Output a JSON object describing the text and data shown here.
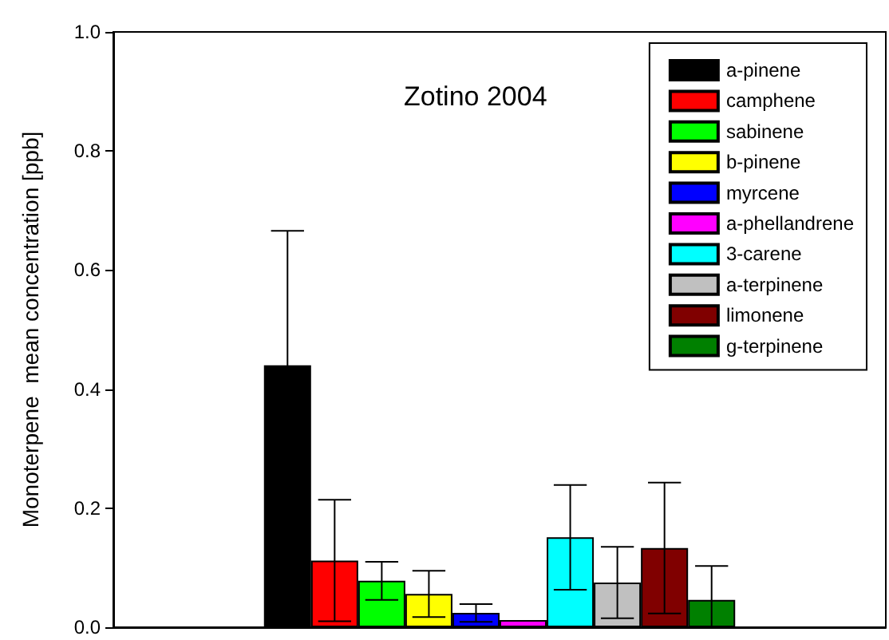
{
  "chart_data": {
    "type": "bar",
    "title": "Zotino 2004",
    "ylabel": "Monoterpene  mean concentration [ppb]",
    "categories": [
      null
    ],
    "series": [
      {
        "name": "a-pinene",
        "color": "#000000",
        "values": [
          0.44
        ],
        "errors": [
          0.226
        ]
      },
      {
        "name": "camphene",
        "color": "#ff0000",
        "values": [
          0.112
        ],
        "errors": [
          0.102
        ]
      },
      {
        "name": "sabinene",
        "color": "#00ff00",
        "values": [
          0.078
        ],
        "errors": [
          0.032
        ]
      },
      {
        "name": "b-pinene",
        "color": "#ffff00",
        "values": [
          0.056
        ],
        "errors": [
          0.039
        ]
      },
      {
        "name": "myrcene",
        "color": "#0000ff",
        "values": [
          0.024
        ],
        "errors": [
          0.015
        ]
      },
      {
        "name": "a-phellandrene",
        "color": "#ff00ff",
        "values": [
          0.012
        ],
        "errors": [
          null
        ]
      },
      {
        "name": "3-carene",
        "color": "#00ffff",
        "values": [
          0.151
        ],
        "errors": [
          0.088
        ]
      },
      {
        "name": "a-terpinene",
        "color": "#c0c0c0",
        "values": [
          0.075
        ],
        "errors": [
          0.06
        ]
      },
      {
        "name": "limonene",
        "color": "#800000",
        "values": [
          0.133
        ],
        "errors": [
          0.11
        ]
      },
      {
        "name": "g-terpinene",
        "color": "#008000",
        "values": [
          0.046
        ],
        "errors": [
          [
            0,
            0.103
          ]
        ]
      }
    ],
    "ylim": [
      0,
      1
    ],
    "yticks": [
      {
        "value": 0,
        "label": "0.0"
      },
      0.2,
      0.4,
      0.6,
      0.8,
      {
        "value": 1,
        "label": "1.0"
      }
    ],
    "grid": false,
    "legend": "top right"
  }
}
